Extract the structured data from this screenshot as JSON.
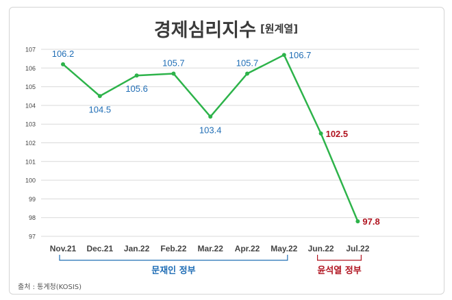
{
  "title": "경제심리지수",
  "subtitle": "[원계열]",
  "source": "출처 : 통계청(KOSIS)",
  "colors": {
    "line": "#2db34a",
    "blue_label": "#1f6db5",
    "red_label": "#b0131f",
    "grid": "#d9d9d9",
    "tick_text": "#444444"
  },
  "chart_data": {
    "type": "line",
    "categories": [
      "Nov.21",
      "Dec.21",
      "Jan.22",
      "Feb.22",
      "Mar.22",
      "Apr.22",
      "May.22",
      "Jun.22",
      "Jul.22"
    ],
    "values": [
      106.2,
      104.5,
      105.6,
      105.7,
      103.4,
      105.7,
      106.7,
      102.5,
      97.8
    ],
    "data_labels": [
      "106.2",
      "104.5",
      "105.6",
      "105.7",
      "103.4",
      "105.7",
      "106.7",
      "102.5",
      "97.8"
    ],
    "label_colors": [
      "blue",
      "blue",
      "blue",
      "blue",
      "blue",
      "blue",
      "blue",
      "red",
      "red"
    ],
    "label_positions": [
      "above",
      "below",
      "below",
      "above",
      "below",
      "above",
      "right",
      "right",
      "right"
    ],
    "ylim": [
      97,
      107
    ],
    "yticks": [
      97,
      98,
      99,
      100,
      101,
      102,
      103,
      104,
      105,
      106,
      107
    ],
    "grid": true,
    "groups": [
      {
        "label": "문재인 정부",
        "from_index": 0,
        "to_index": 6,
        "color": "blue"
      },
      {
        "label": "윤석열 정부",
        "from_index": 7,
        "to_index": 8,
        "color": "red"
      }
    ]
  }
}
